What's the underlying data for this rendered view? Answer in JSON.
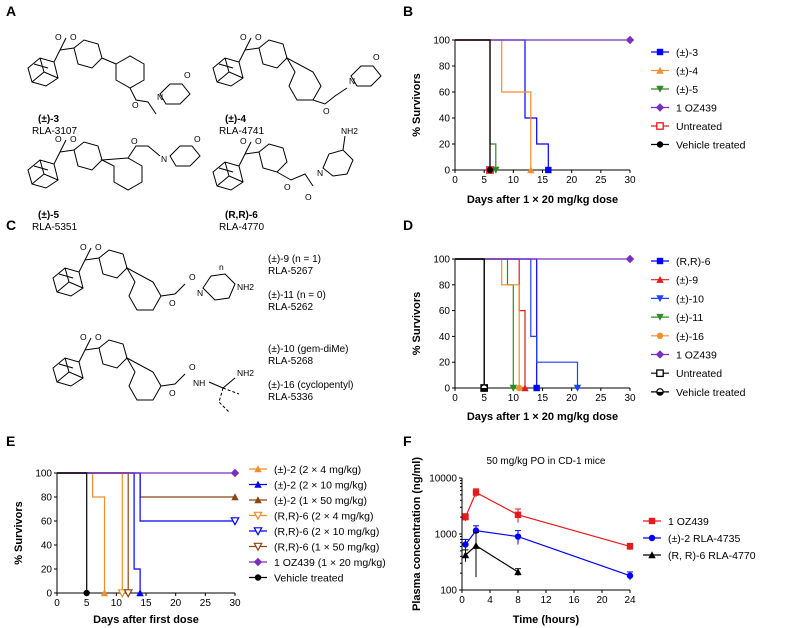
{
  "panels": [
    "A",
    "B",
    "C",
    "D",
    "E",
    "F"
  ],
  "compounds_a": [
    {
      "id": "(±)-3",
      "code": "RLA-3107"
    },
    {
      "id": "(±)-4",
      "code": "RLA-4741"
    },
    {
      "id": "(±)-5",
      "code": "RLA-5351"
    },
    {
      "id": "(R,R)-6",
      "code": "RLA-4770"
    }
  ],
  "compounds_c": [
    {
      "id": "(±)-9 (n = 1)",
      "code": "RLA-5267"
    },
    {
      "id": "(±)-11 (n = 0)",
      "code": "RLA-5262"
    },
    {
      "id": "(±)-10 (gem-diMe)",
      "code": "RLA-5268"
    },
    {
      "id": "(±)-16 (cyclopentyl)",
      "code": "RLA-5336"
    }
  ],
  "atoms": {
    "O": "O",
    "N": "N",
    "NH": "NH",
    "NH2": "NH2",
    "n": "n"
  },
  "colors": {
    "blue": "#0000ff",
    "orange": "#f28e2b",
    "green": "#2e8b22",
    "purple": "#7b2fbe",
    "red": "#e41a1c",
    "black": "#000000",
    "brown": "#8b4513",
    "dblue": "#1f40ff"
  },
  "chart_data": [
    {
      "panel": "B",
      "type": "line",
      "step": true,
      "xlabel": "Days after 1 × 20 mg/kg dose",
      "ylabel": "% Survivors",
      "xlim": [
        0,
        30
      ],
      "ylim": [
        0,
        100
      ],
      "xticks": [
        0,
        5,
        10,
        15,
        20,
        25,
        30
      ],
      "yticks": [
        0,
        20,
        40,
        60,
        80,
        100
      ],
      "legend": "right",
      "series": [
        {
          "name": "(±)-3",
          "color": "#0000ff",
          "marker": "square",
          "points": [
            [
              0,
              100
            ],
            [
              12,
              100
            ],
            [
              12,
              40
            ],
            [
              14,
              40
            ],
            [
              14,
              20
            ],
            [
              16,
              20
            ],
            [
              16,
              0
            ]
          ]
        },
        {
          "name": "(±)-4",
          "color": "#f28e2b",
          "marker": "triangle-up",
          "points": [
            [
              0,
              100
            ],
            [
              8,
              100
            ],
            [
              8,
              60
            ],
            [
              13,
              60
            ],
            [
              13,
              0
            ]
          ]
        },
        {
          "name": "(±)-5",
          "color": "#2e8b22",
          "marker": "triangle-down",
          "points": [
            [
              0,
              100
            ],
            [
              6,
              100
            ],
            [
              6,
              20
            ],
            [
              7,
              20
            ],
            [
              7,
              0
            ]
          ]
        },
        {
          "name": "1 OZ439",
          "color": "#7b2fbe",
          "marker": "diamond",
          "points": [
            [
              0,
              100
            ],
            [
              30,
              100
            ]
          ]
        },
        {
          "name": "Untreated",
          "color": "#e41a1c",
          "marker": "square-open",
          "points": [
            [
              0,
              100
            ],
            [
              6,
              100
            ],
            [
              6,
              0
            ]
          ]
        },
        {
          "name": "Vehicle treated",
          "color": "#000000",
          "marker": "circle",
          "points": [
            [
              0,
              100
            ],
            [
              6,
              100
            ],
            [
              6,
              0
            ]
          ]
        }
      ]
    },
    {
      "panel": "D",
      "type": "line",
      "step": true,
      "xlabel": "Days after 1 × 20 mg/kg dose",
      "ylabel": "% Survivors",
      "xlim": [
        0,
        30
      ],
      "ylim": [
        0,
        100
      ],
      "xticks": [
        0,
        5,
        10,
        15,
        20,
        25,
        30
      ],
      "yticks": [
        0,
        20,
        40,
        60,
        80,
        100
      ],
      "legend": "right",
      "series": [
        {
          "name": "(R,R)-6",
          "color": "#0000ff",
          "marker": "square",
          "points": [
            [
              0,
              100
            ],
            [
              14,
              100
            ],
            [
              14,
              0
            ]
          ]
        },
        {
          "name": "(±)-9",
          "color": "#e41a1c",
          "marker": "triangle-up",
          "points": [
            [
              0,
              100
            ],
            [
              11,
              100
            ],
            [
              11,
              60
            ],
            [
              12,
              60
            ],
            [
              12,
              0
            ]
          ]
        },
        {
          "name": "(±)-10",
          "color": "#1f40ff",
          "marker": "triangle-down",
          "points": [
            [
              0,
              100
            ],
            [
              13,
              100
            ],
            [
              13,
              40
            ],
            [
              14,
              40
            ],
            [
              14,
              20
            ],
            [
              21,
              20
            ],
            [
              21,
              0
            ]
          ]
        },
        {
          "name": "(±)-11",
          "color": "#2e8b22",
          "marker": "triangle-down",
          "points": [
            [
              0,
              100
            ],
            [
              9,
              100
            ],
            [
              9,
              80
            ],
            [
              10,
              80
            ],
            [
              10,
              0
            ]
          ]
        },
        {
          "name": "(±)-16",
          "color": "#f28e2b",
          "marker": "circle",
          "points": [
            [
              0,
              100
            ],
            [
              8,
              100
            ],
            [
              8,
              80
            ],
            [
              11,
              80
            ],
            [
              11,
              0
            ]
          ]
        },
        {
          "name": "1 OZ439",
          "color": "#7b2fbe",
          "marker": "diamond",
          "points": [
            [
              0,
              100
            ],
            [
              30,
              100
            ]
          ]
        },
        {
          "name": "Untreated",
          "color": "#000000",
          "marker": "square-open",
          "points": [
            [
              0,
              100
            ],
            [
              5,
              100
            ],
            [
              5,
              0
            ]
          ]
        },
        {
          "name": "Vehicle treated",
          "color": "#000000",
          "marker": "circle-half",
          "points": [
            [
              0,
              100
            ],
            [
              5,
              100
            ],
            [
              5,
              0
            ]
          ]
        }
      ]
    },
    {
      "panel": "E",
      "type": "line",
      "step": true,
      "xlabel": "Days after first dose",
      "ylabel": "% Survivors",
      "xlim": [
        0,
        30
      ],
      "ylim": [
        0,
        100
      ],
      "xticks": [
        0,
        5,
        10,
        15,
        20,
        25,
        30
      ],
      "yticks": [
        0,
        20,
        40,
        60,
        80,
        100
      ],
      "legend": "right",
      "series": [
        {
          "name": "(±)-2 (2 × 4 mg/kg)",
          "color": "#f28e2b",
          "marker": "triangle-up",
          "points": [
            [
              0,
              100
            ],
            [
              6,
              100
            ],
            [
              6,
              80
            ],
            [
              8,
              80
            ],
            [
              8,
              0
            ]
          ]
        },
        {
          "name": "(±)-2 (2 × 10 mg/kg)",
          "color": "#0000ff",
          "marker": "triangle-up",
          "points": [
            [
              0,
              100
            ],
            [
              13,
              100
            ],
            [
              13,
              20
            ],
            [
              14,
              20
            ],
            [
              14,
              0
            ]
          ]
        },
        {
          "name": "(±)-2 (1 × 50 mg/kg)",
          "color": "#8b4513",
          "marker": "triangle-up",
          "points": [
            [
              0,
              100
            ],
            [
              14,
              100
            ],
            [
              14,
              80
            ],
            [
              30,
              80
            ]
          ]
        },
        {
          "name": "(R,R)-6 (2 × 4 mg/kg)",
          "color": "#f28e2b",
          "marker": "triangle-down-open",
          "points": [
            [
              0,
              100
            ],
            [
              11,
              100
            ],
            [
              11,
              0
            ]
          ]
        },
        {
          "name": "(R,R)-6 (2 × 10 mg/kg)",
          "color": "#0000ff",
          "marker": "triangle-down-open",
          "points": [
            [
              0,
              100
            ],
            [
              14,
              100
            ],
            [
              14,
              60
            ],
            [
              30,
              60
            ]
          ]
        },
        {
          "name": "(R,R)-6 (1 × 50 mg/kg)",
          "color": "#8b4513",
          "marker": "triangle-down-open",
          "points": [
            [
              0,
              100
            ],
            [
              12,
              100
            ],
            [
              12,
              0
            ]
          ]
        },
        {
          "name": "1 OZ439 (1 × 20 mg/kg)",
          "color": "#7b2fbe",
          "marker": "diamond",
          "points": [
            [
              0,
              100
            ],
            [
              30,
              100
            ]
          ]
        },
        {
          "name": "Vehicle treated",
          "color": "#000000",
          "marker": "circle",
          "points": [
            [
              0,
              100
            ],
            [
              5,
              100
            ],
            [
              5,
              0
            ]
          ]
        }
      ]
    },
    {
      "panel": "F",
      "type": "line",
      "title": "50 mg/kg PO in CD-1 mice",
      "xlabel": "Time (hours)",
      "ylabel": "Plasma concentration (ng/ml)",
      "xlim": [
        0,
        24
      ],
      "ylim": [
        100,
        10000
      ],
      "ylog": true,
      "xticks": [
        0,
        4,
        8,
        12,
        16,
        20,
        24
      ],
      "yticks": [
        100,
        1000,
        10000
      ],
      "legend": "right",
      "series": [
        {
          "name": "1 OZ439",
          "color": "#e41a1c",
          "marker": "square",
          "x": [
            0.5,
            2,
            8,
            24
          ],
          "y": [
            2000,
            5500,
            2200,
            600
          ],
          "err": [
            300,
            900,
            600,
            80
          ]
        },
        {
          "name": "(±)-2 RLA-4735",
          "color": "#0000ff",
          "marker": "circle",
          "x": [
            0.5,
            2,
            8,
            24
          ],
          "y": [
            650,
            1150,
            900,
            180
          ],
          "err": [
            150,
            250,
            250,
            30
          ]
        },
        {
          "name": "(R, R)-6 RLA-4770",
          "color": "#000000",
          "marker": "triangle-up",
          "x": [
            0.5,
            2,
            8
          ],
          "y": [
            420,
            620,
            210
          ],
          "err": [
            100,
            450,
            30
          ]
        }
      ]
    }
  ]
}
